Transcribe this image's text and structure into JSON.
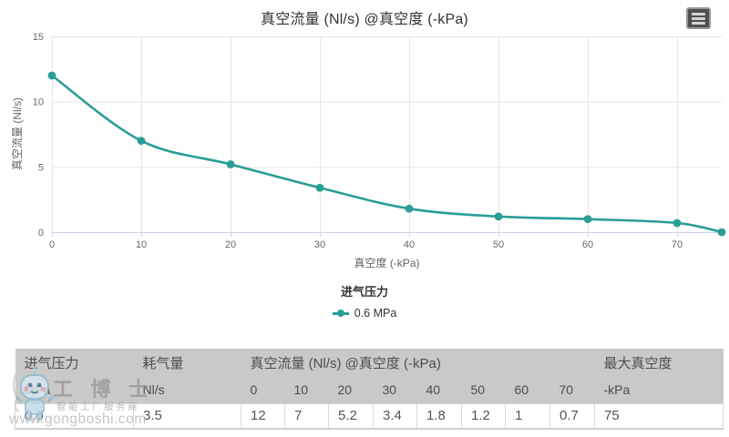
{
  "chart": {
    "title": "真空流量 (Nl/s) @真空度 (-kPa)",
    "legend_title": "进气压力",
    "legend_items": [
      {
        "label": "0.6 MPa",
        "color": "#2a9d96"
      }
    ],
    "menu_icon": "hamburger-menu-icon"
  },
  "chart_data": {
    "type": "line",
    "title": "真空流量 (Nl/s) @真空度 (-kPa)",
    "xlabel": "真空度 (-kPa)",
    "ylabel": "真空流量 (Nl/s)",
    "x": [
      0,
      10,
      20,
      30,
      40,
      50,
      60,
      70,
      75
    ],
    "series": [
      {
        "name": "0.6 MPa",
        "values": [
          12,
          7,
          5.2,
          3.4,
          1.8,
          1.2,
          1,
          0.7,
          0
        ]
      }
    ],
    "xlim": [
      0,
      75
    ],
    "ylim": [
      0,
      15
    ],
    "x_ticks": [
      0,
      10,
      20,
      30,
      40,
      50,
      60,
      70
    ],
    "y_ticks": [
      0,
      5,
      10,
      15
    ],
    "grid": true,
    "legend_title": "进气压力",
    "legend_position": "bottom",
    "line_color": "#2a9d96",
    "grid_color": "#e6e6e6",
    "axis_color": "#ccd6eb"
  },
  "table": {
    "header_row1": [
      {
        "label": "进气压力",
        "colspan": 1
      },
      {
        "label": "耗气量",
        "colspan": 1
      },
      {
        "label": "真空流量 (Nl/s) @真空度 (-kPa)",
        "colspan": 8
      },
      {
        "label": "最大真空度",
        "colspan": 1
      }
    ],
    "header_row2": [
      "MPa",
      "Nl/s",
      "0",
      "10",
      "20",
      "30",
      "40",
      "50",
      "60",
      "70",
      "-kPa"
    ],
    "rows": [
      [
        "0.6",
        "3.5",
        "12",
        "7",
        "5.2",
        "3.4",
        "1.8",
        "1.2",
        "1",
        "0.7",
        "75"
      ]
    ]
  },
  "watermark": {
    "brand": "工 博 士",
    "tagline": "智能工厂服务商",
    "url": "www.gongboshi.com"
  }
}
